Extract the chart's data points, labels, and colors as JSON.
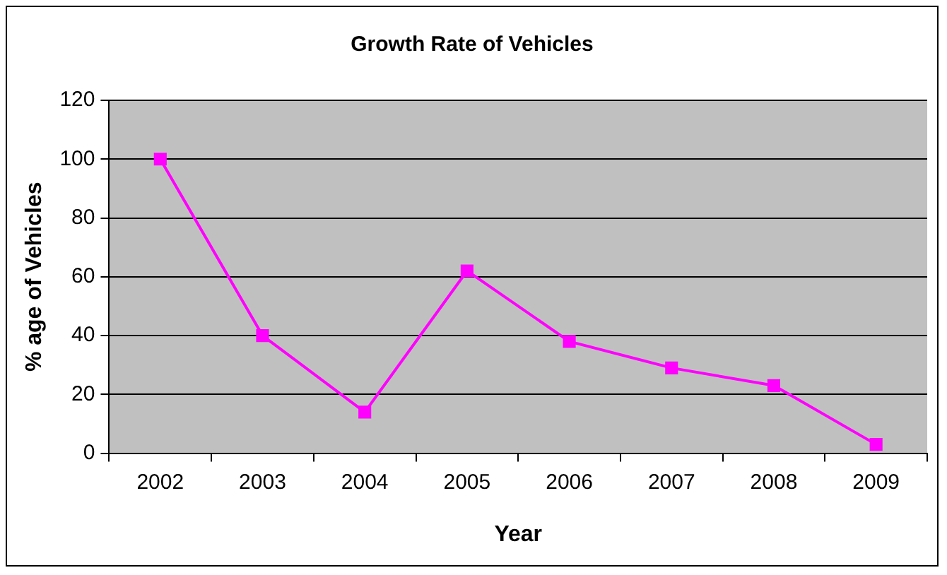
{
  "chart_data": {
    "type": "line",
    "title": "Growth Rate of Vehicles",
    "xlabel": "Year",
    "ylabel": "% age of Vehicles",
    "categories": [
      "2002",
      "2003",
      "2004",
      "2005",
      "2006",
      "2007",
      "2008",
      "2009"
    ],
    "series": [
      {
        "color": "#ff00ff",
        "values": [
          100,
          40,
          14,
          62,
          38,
          29,
          23,
          3
        ]
      }
    ],
    "ylim": [
      0,
      120
    ],
    "yticks": [
      0,
      20,
      40,
      60,
      80,
      100,
      120
    ],
    "grid": "y",
    "legend": false,
    "marker": "square",
    "line_style": "solid"
  }
}
